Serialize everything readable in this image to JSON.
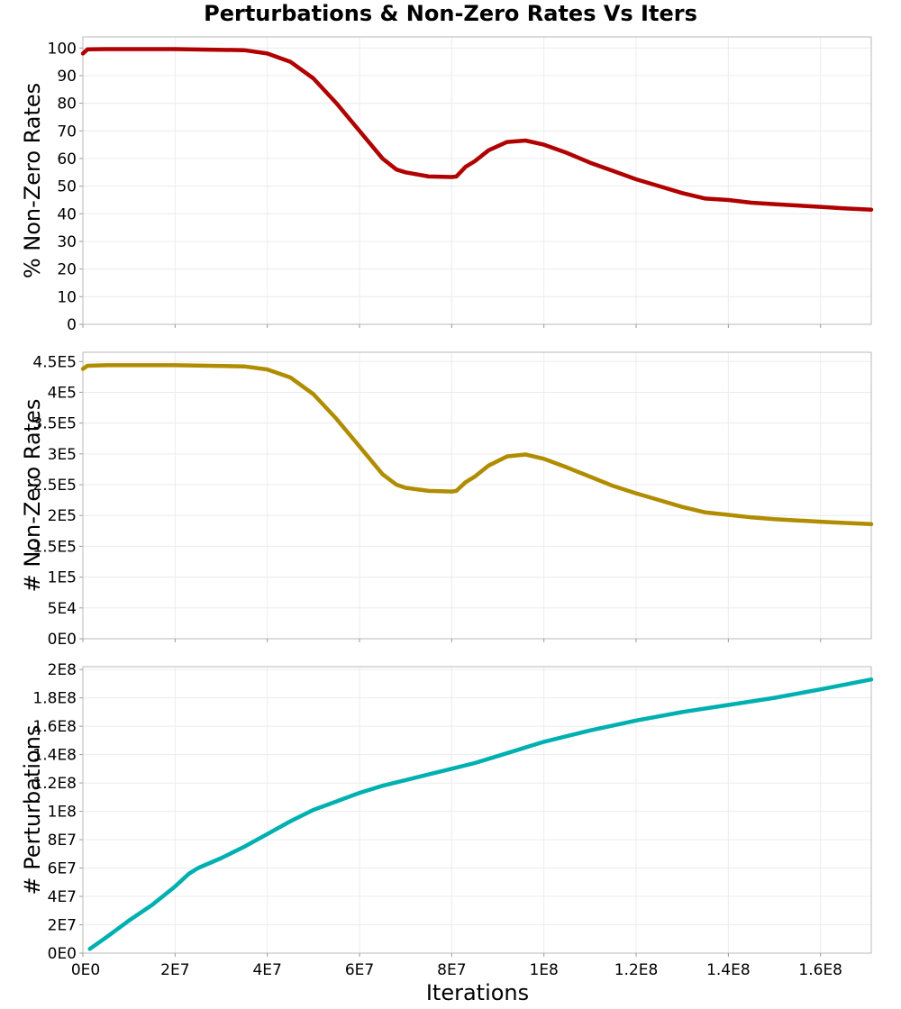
{
  "chart_data": {
    "type": "line",
    "title": "Perturbations & Non-Zero Rates Vs Iters",
    "xlabel": "Iterations",
    "xlim": [
      0,
      171000000
    ],
    "x_ticks": [
      0,
      20000000,
      40000000,
      60000000,
      80000000,
      100000000,
      120000000,
      140000000,
      160000000
    ],
    "x_tick_labels": [
      "0E0",
      "2E7",
      "4E7",
      "6E7",
      "8E7",
      "1E8",
      "1.2E8",
      "1.4E8",
      "1.6E8"
    ],
    "grid": true,
    "panels": [
      {
        "ylabel": "% Non-Zero Rates",
        "ylim": [
          0,
          104
        ],
        "y_ticks": [
          0,
          10,
          20,
          30,
          40,
          50,
          60,
          70,
          80,
          90,
          100
        ],
        "y_tick_labels": [
          "0",
          "10",
          "20",
          "30",
          "40",
          "50",
          "60",
          "70",
          "80",
          "90",
          "100"
        ],
        "color": "#b00000",
        "x": [
          0,
          1000000,
          5000000,
          20000000,
          35000000,
          40000000,
          45000000,
          50000000,
          55000000,
          60000000,
          65000000,
          68000000,
          70000000,
          75000000,
          80000000,
          81000000,
          83000000,
          85000000,
          88000000,
          92000000,
          96000000,
          100000000,
          105000000,
          110000000,
          115000000,
          120000000,
          125000000,
          130000000,
          135000000,
          140000000,
          145000000,
          150000000,
          155000000,
          160000000,
          165000000,
          171000000
        ],
        "y": [
          98,
          99.5,
          99.6,
          99.6,
          99.2,
          98,
          95,
          89,
          80,
          70,
          60,
          56,
          55,
          53.5,
          53.3,
          53.5,
          57,
          59,
          63,
          66,
          66.5,
          65,
          62,
          58.5,
          55.5,
          52.5,
          50,
          47.5,
          45.5,
          45,
          44,
          43.5,
          43,
          42.5,
          42,
          41.5
        ]
      },
      {
        "ylabel": "# Non-Zero Rates",
        "ylim": [
          0,
          465000
        ],
        "y_ticks": [
          0,
          50000,
          100000,
          150000,
          200000,
          250000,
          300000,
          350000,
          400000,
          450000
        ],
        "y_tick_labels": [
          "0E0",
          "5E4",
          "1E5",
          "1.5E5",
          "2E5",
          "2.5E5",
          "3E5",
          "3.5E5",
          "4E5",
          "4.5E5"
        ],
        "color": "#b08c00",
        "x": [
          0,
          1000000,
          5000000,
          20000000,
          35000000,
          40000000,
          45000000,
          50000000,
          55000000,
          60000000,
          65000000,
          68000000,
          70000000,
          75000000,
          80000000,
          81000000,
          83000000,
          85000000,
          88000000,
          92000000,
          96000000,
          100000000,
          105000000,
          110000000,
          115000000,
          120000000,
          125000000,
          130000000,
          135000000,
          140000000,
          145000000,
          150000000,
          155000000,
          160000000,
          165000000,
          171000000
        ],
        "y": [
          438000,
          443000,
          444000,
          444000,
          442000,
          437000,
          424000,
          397000,
          357000,
          312000,
          267000,
          250000,
          245000,
          240000,
          239000,
          240000,
          254000,
          263000,
          281000,
          296000,
          299000,
          292000,
          278000,
          263000,
          248000,
          236000,
          225000,
          214000,
          205000,
          201000,
          197000,
          194000,
          192000,
          190000,
          188000,
          186000
        ]
      },
      {
        "ylabel": "# Perturbations",
        "ylim": [
          0,
          202000000
        ],
        "y_ticks": [
          0,
          20000000,
          40000000,
          60000000,
          80000000,
          100000000,
          120000000,
          140000000,
          160000000,
          180000000,
          200000000
        ],
        "y_tick_labels": [
          "0E0",
          "2E7",
          "4E7",
          "6E7",
          "8E7",
          "1E8",
          "1.2E8",
          "1.4E8",
          "1.6E8",
          "1.8E8",
          "2E8"
        ],
        "color": "#00b0b0",
        "x": [
          1500000,
          5000000,
          10000000,
          15000000,
          20000000,
          23000000,
          25000000,
          30000000,
          35000000,
          40000000,
          45000000,
          50000000,
          55000000,
          60000000,
          65000000,
          70000000,
          75000000,
          80000000,
          85000000,
          90000000,
          95000000,
          100000000,
          110000000,
          120000000,
          130000000,
          140000000,
          150000000,
          160000000,
          171000000
        ],
        "y": [
          3000000,
          11000000,
          23000000,
          34000000,
          47000000,
          56000000,
          60000000,
          67000000,
          75000000,
          84000000,
          93000000,
          101000000,
          107000000,
          113000000,
          118000000,
          122000000,
          126000000,
          130000000,
          134000000,
          139000000,
          144000000,
          149000000,
          157000000,
          164000000,
          170000000,
          175000000,
          180000000,
          186000000,
          193000000
        ]
      }
    ]
  }
}
